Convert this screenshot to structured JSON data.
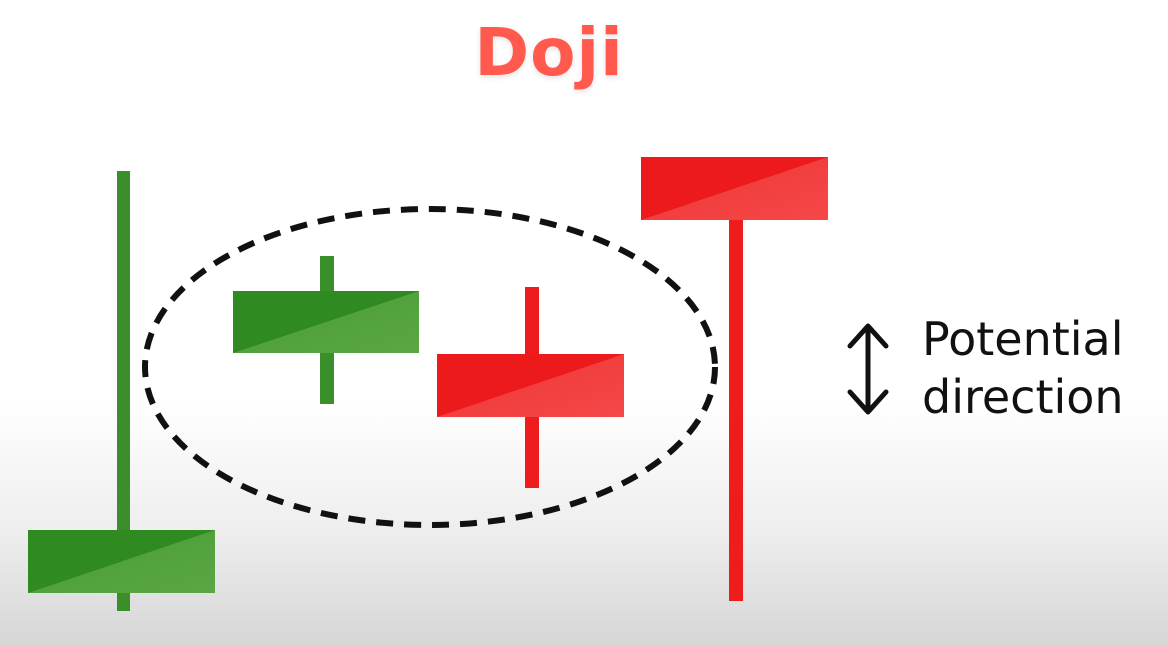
{
  "title": "Doji",
  "direction_label": {
    "line1": "Potential",
    "line2": "direction"
  },
  "icons": {
    "arrow": "up-down-arrow-icon",
    "highlight": "dashed-ellipse"
  },
  "colors": {
    "title": "#ff5a4d",
    "bullish": "#3a8f2a",
    "bullish_light": "#5aa643",
    "bearish": "#ee1c1c",
    "bearish_light": "#f24545",
    "text": "#111111"
  },
  "candles": [
    {
      "name": "candle-bullish-large",
      "direction": "bullish"
    },
    {
      "name": "candle-doji-bullish",
      "direction": "bullish"
    },
    {
      "name": "candle-doji-bearish",
      "direction": "bearish"
    },
    {
      "name": "candle-bearish-large",
      "direction": "bearish"
    }
  ]
}
